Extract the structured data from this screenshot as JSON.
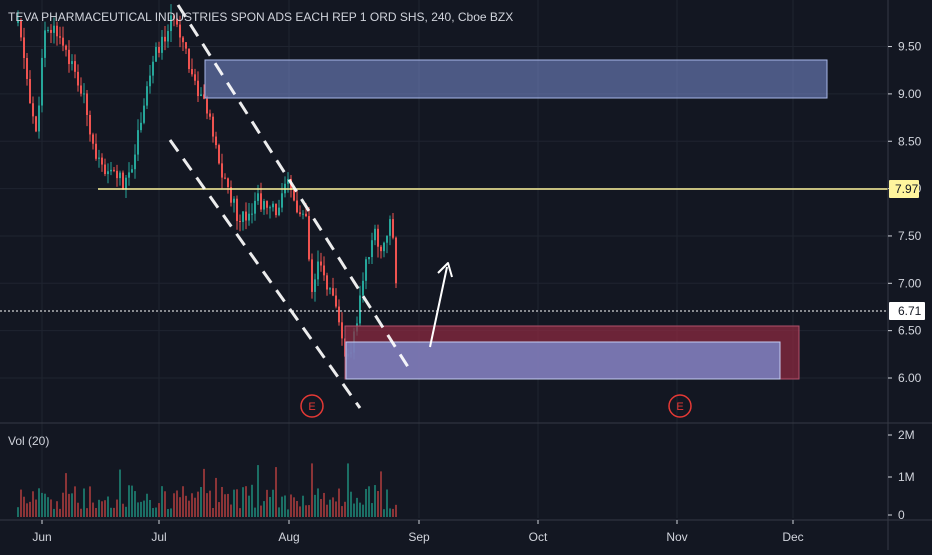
{
  "header": {
    "title": "TEVA PHARMACEUTICAL INDUSTRIES SPON ADS EACH REP 1 ORD SHS, 240, Cboe BZX"
  },
  "volume_pane": {
    "label": "Vol (20)"
  },
  "colors": {
    "background": "#131722",
    "grid": "#1f2430",
    "up": "#26a69a",
    "down": "#ef5350",
    "vol_up": "#1b6f65",
    "vol_down": "#8b3437",
    "resistance_line": "#fff59d",
    "demand_box": "#7b8fd6",
    "supply_box_red": "#8b2a40",
    "text": "#d1d4dc",
    "white": "#ffffff",
    "earnings_red": "#e53935"
  },
  "chart_data": {
    "type": "candlestick",
    "title": "TEVA PHARMACEUTICAL INDUSTRIES SPON ADS EACH REP 1 ORD SHS, 240, Cboe BZX",
    "interval": "240",
    "exchange": "Cboe BZX",
    "y_axis": {
      "ticks": [
        "9.50",
        "9.00",
        "8.50",
        "8.00",
        "7.50",
        "7.00",
        "6.50",
        "6.00"
      ],
      "range": [
        5.7,
        9.9
      ]
    },
    "x_axis": {
      "ticks": [
        "Jun",
        "Jul",
        "Aug",
        "Sep",
        "Oct",
        "Nov",
        "Dec"
      ]
    },
    "volume_axis": {
      "ticks": [
        "2M",
        "1M",
        "0"
      ]
    },
    "price_labels": {
      "resistance": "7.97",
      "last": "6.71"
    },
    "earnings_markers": [
      "E",
      "E"
    ],
    "grid": true,
    "annotations": [
      "horizontal line at 7.97",
      "supply zone 8.95-9.35",
      "demand zones around 6.0-6.55",
      "descending dashed channel",
      "up arrow"
    ]
  }
}
